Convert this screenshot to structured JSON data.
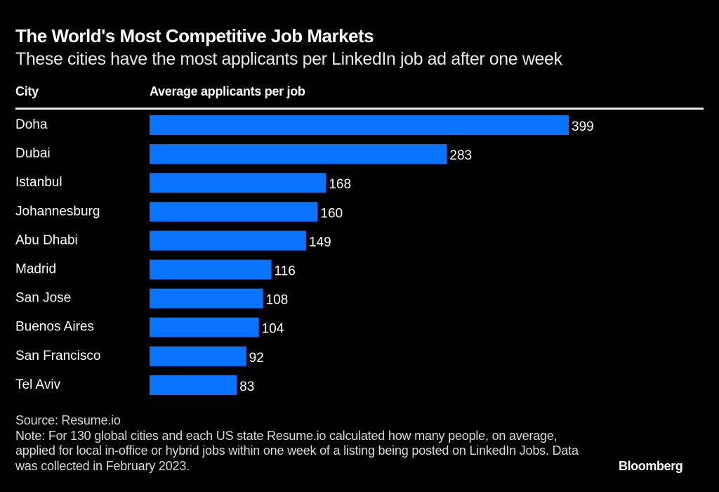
{
  "header": {
    "title": "The World's Most Competitive Job Markets",
    "subtitle": "These cities have the most applicants per LinkedIn job ad after one week"
  },
  "columns": {
    "city": "City",
    "value": "Average applicants per job"
  },
  "chart_data": {
    "type": "bar",
    "orientation": "horizontal",
    "title": "The World's Most Competitive Job Markets",
    "subtitle": "These cities have the most applicants per LinkedIn job ad after one week",
    "xlabel": "Average applicants per job",
    "ylabel": "City",
    "categories": [
      "Doha",
      "Dubai",
      "Istanbul",
      "Johannesburg",
      "Abu Dhabi",
      "Madrid",
      "San Jose",
      "Buenos Aires",
      "San Francisco",
      "Tel Aviv"
    ],
    "values": [
      399,
      283,
      168,
      160,
      149,
      116,
      108,
      104,
      92,
      83
    ],
    "xlim": [
      0,
      399
    ],
    "bar_color": "#0a73ff",
    "grid": false,
    "data_labels": true
  },
  "footer": {
    "source": "Source: Resume.io",
    "note": "Note: For 130 global cities and each US state Resume.io calculated how many people, on average, applied for local in-office or hybrid jobs within one week of a listing being posted on LinkedIn Jobs. Data was collected in February 2023.",
    "brand": "Bloomberg"
  }
}
